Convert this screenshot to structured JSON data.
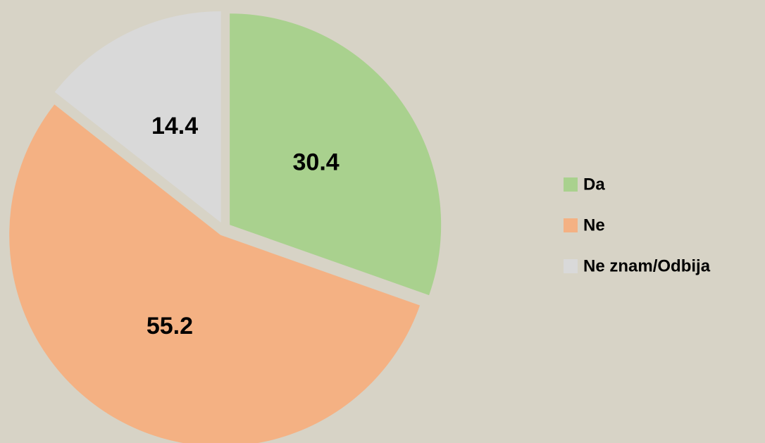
{
  "chart_data": {
    "type": "pie",
    "categories": [
      "Da",
      "Ne",
      "Ne znam/Odbija"
    ],
    "values": [
      30.4,
      55.2,
      14.4
    ],
    "colors": [
      "#a9d18e",
      "#f4b183",
      "#d9d9d9"
    ],
    "legend": "right",
    "exploded": true
  }
}
